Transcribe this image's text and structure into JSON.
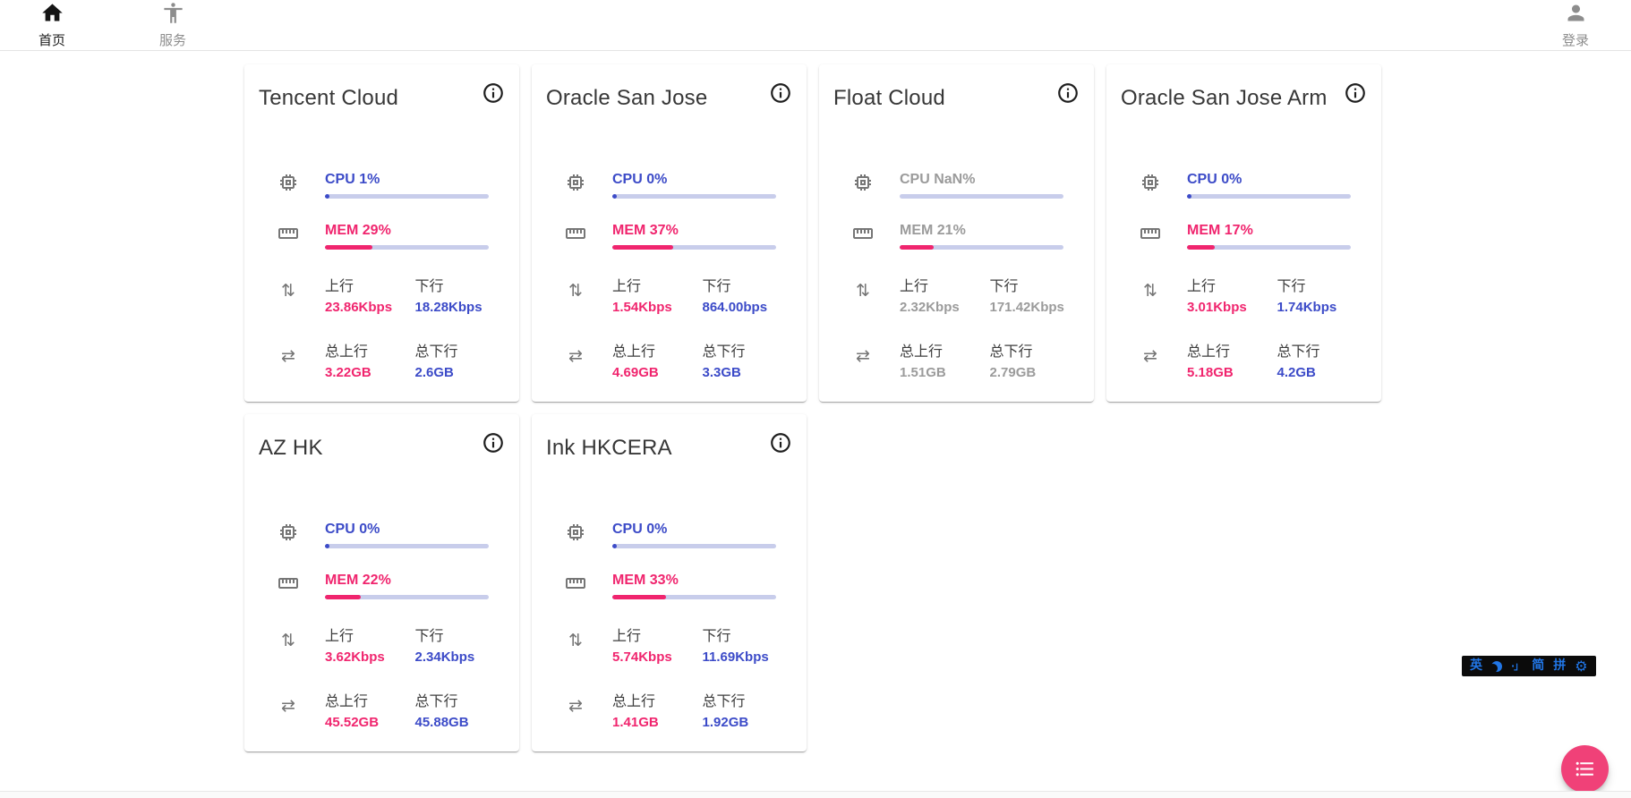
{
  "nav": {
    "home": {
      "label": "首页"
    },
    "services": {
      "label": "服务"
    },
    "login": {
      "label": "登录"
    }
  },
  "card_labels": {
    "up": "上行",
    "down": "下行",
    "total_up": "总上行",
    "total_down": "总下行"
  },
  "servers": [
    {
      "name": "Tencent Cloud",
      "offline": false,
      "cpu": {
        "label": "CPU 1%",
        "pct": 1
      },
      "mem": {
        "label": "MEM 29%",
        "pct": 29
      },
      "net_up": "23.86Kbps",
      "net_down": "18.28Kbps",
      "total_up": "3.22GB",
      "total_down": "2.6GB"
    },
    {
      "name": "Oracle San Jose",
      "offline": false,
      "cpu": {
        "label": "CPU 0%",
        "pct": 0
      },
      "mem": {
        "label": "MEM 37%",
        "pct": 37
      },
      "net_up": "1.54Kbps",
      "net_down": "864.00bps",
      "total_up": "4.69GB",
      "total_down": "3.3GB"
    },
    {
      "name": "Float Cloud",
      "offline": true,
      "cpu": {
        "label": "CPU NaN%",
        "pct": null
      },
      "mem": {
        "label": "MEM 21%",
        "pct": 21
      },
      "net_up": "2.32Kbps",
      "net_down": "171.42Kbps",
      "total_up": "1.51GB",
      "total_down": "2.79GB"
    },
    {
      "name": "Oracle San Jose Arm",
      "offline": false,
      "cpu": {
        "label": "CPU 0%",
        "pct": 0
      },
      "mem": {
        "label": "MEM 17%",
        "pct": 17
      },
      "net_up": "3.01Kbps",
      "net_down": "1.74Kbps",
      "total_up": "5.18GB",
      "total_down": "4.2GB"
    },
    {
      "name": "AZ HK",
      "offline": false,
      "cpu": {
        "label": "CPU 0%",
        "pct": 0
      },
      "mem": {
        "label": "MEM 22%",
        "pct": 22
      },
      "net_up": "3.62Kbps",
      "net_down": "2.34Kbps",
      "total_up": "45.52GB",
      "total_down": "45.88GB"
    },
    {
      "name": "Ink HKCERA",
      "offline": false,
      "cpu": {
        "label": "CPU 0%",
        "pct": 0
      },
      "mem": {
        "label": "MEM 33%",
        "pct": 33
      },
      "net_up": "5.74Kbps",
      "net_down": "11.69Kbps",
      "total_up": "1.41GB",
      "total_down": "1.92GB"
    }
  ],
  "ime_bar": {
    "lang": "英",
    "punct": "·」",
    "simplified": "简",
    "pinyin": "拼"
  },
  "colors": {
    "accent_blue": "#3c4bc8",
    "accent_pink": "#f0256e",
    "progress_track": "#c8cdeb",
    "fab_pink": "#f04178",
    "ime_accent": "#2176e6",
    "offline_gray": "#9b9b9b"
  }
}
